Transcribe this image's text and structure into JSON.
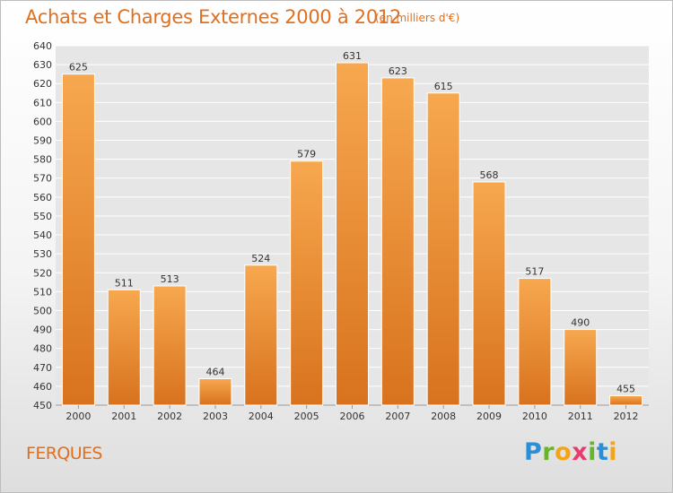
{
  "title": "Achats et Charges Externes 2000 à 2012",
  "subtitle": "(en milliers d'€)",
  "location": "FERQUES",
  "logo": {
    "letters": [
      "P",
      "r",
      "o",
      "x",
      "i",
      "t",
      "i"
    ]
  },
  "colors": {
    "bar_light": "#f7a84f",
    "bar_dark": "#d8721e",
    "text_accent": "#e0701f",
    "grid": "#ffffff",
    "plot_bg": "#e6e6e6"
  },
  "chart_data": {
    "type": "bar",
    "title": "Achats et Charges Externes 2000 à 2012",
    "subtitle": "(en milliers d'€)",
    "categories": [
      "2000",
      "2001",
      "2002",
      "2003",
      "2004",
      "2005",
      "2006",
      "2007",
      "2008",
      "2009",
      "2010",
      "2011",
      "2012"
    ],
    "values": [
      625,
      511,
      513,
      464,
      524,
      579,
      631,
      623,
      615,
      568,
      517,
      490,
      455
    ],
    "ylim": [
      450,
      640
    ],
    "ytick_step": 10,
    "grid": true,
    "legend": "none"
  }
}
